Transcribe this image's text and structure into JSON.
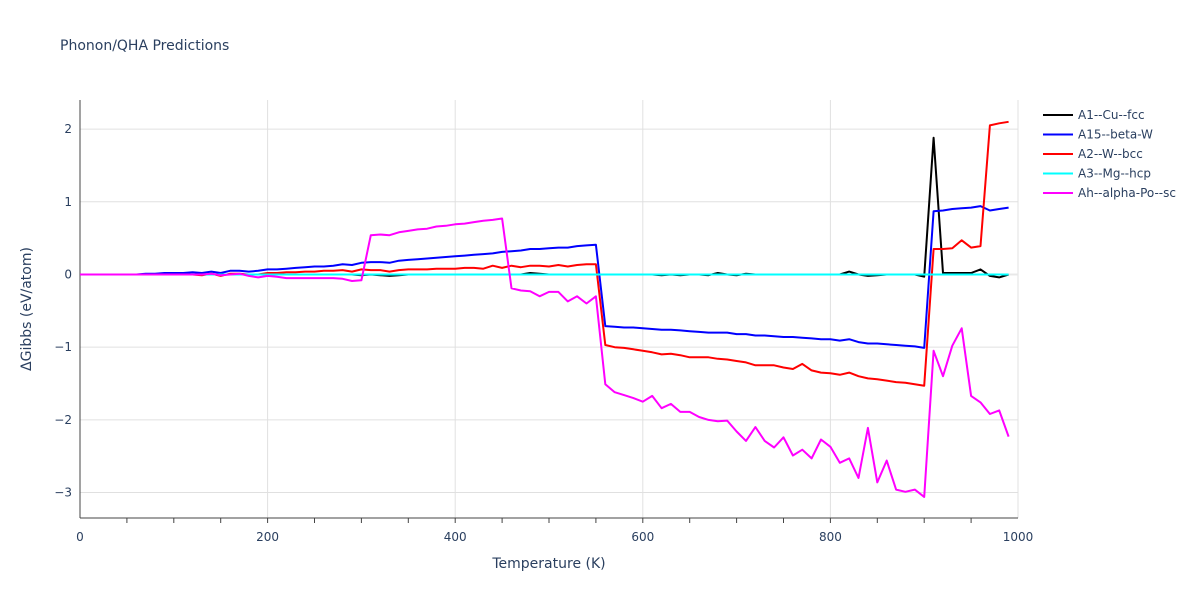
{
  "chart_data": {
    "type": "line",
    "title": "Phonon/QHA Predictions",
    "xlabel": "Temperature (K)",
    "ylabel": "ΔGibbs (eV/atom)",
    "xlim": [
      0,
      1000
    ],
    "ylim": [
      -3.35,
      2.4
    ],
    "xticks": [
      0,
      200,
      400,
      600,
      800,
      1000
    ],
    "yticks": [
      -3,
      -2,
      -1,
      0,
      1,
      2
    ],
    "grid": true,
    "legend_position": "right",
    "x": [
      0,
      10,
      20,
      30,
      40,
      50,
      60,
      70,
      80,
      90,
      100,
      110,
      120,
      130,
      140,
      150,
      160,
      170,
      180,
      190,
      200,
      210,
      220,
      230,
      240,
      250,
      260,
      270,
      280,
      290,
      300,
      310,
      320,
      330,
      340,
      350,
      360,
      370,
      380,
      390,
      400,
      410,
      420,
      430,
      440,
      450,
      460,
      470,
      480,
      490,
      500,
      510,
      520,
      530,
      540,
      550,
      560,
      570,
      580,
      590,
      600,
      610,
      620,
      630,
      640,
      650,
      660,
      670,
      680,
      690,
      700,
      710,
      720,
      730,
      740,
      750,
      760,
      770,
      780,
      790,
      800,
      810,
      820,
      830,
      840,
      850,
      860,
      870,
      880,
      890,
      900,
      910,
      920,
      930,
      940,
      950,
      960,
      970,
      980,
      990
    ],
    "series": [
      {
        "name": "A1--Cu--fcc",
        "color": "#000000",
        "values": [
          0,
          0,
          0,
          0,
          0,
          0,
          0,
          0,
          0,
          0,
          0,
          0,
          0,
          0,
          0,
          0,
          0,
          0,
          0,
          0,
          0,
          0,
          0,
          0,
          0,
          0,
          0,
          0,
          0,
          0,
          -0.01,
          0,
          -0.01,
          -0.02,
          -0.01,
          0,
          0,
          0,
          0,
          0,
          0,
          0,
          0,
          0,
          0,
          0,
          0,
          0,
          0.02,
          0.01,
          0,
          0,
          0,
          0,
          0,
          0,
          0,
          0,
          0,
          0,
          0,
          0,
          -0.01,
          0,
          -0.01,
          0,
          0,
          -0.01,
          0.02,
          0,
          -0.01,
          0.01,
          0,
          0,
          0,
          0,
          0,
          0,
          0,
          0,
          0,
          0,
          0.04,
          0,
          -0.02,
          -0.01,
          0,
          0,
          0,
          0,
          -0.03,
          1.88,
          0.02,
          0.02,
          0.02,
          0.02,
          0.07,
          -0.02,
          -0.04,
          0
        ]
      },
      {
        "name": "A15--beta-W",
        "color": "#0000ff",
        "values": [
          0,
          0,
          0,
          0,
          0,
          0,
          0,
          0.01,
          0.01,
          0.02,
          0.02,
          0.02,
          0.03,
          0.02,
          0.04,
          0.02,
          0.05,
          0.05,
          0.04,
          0.05,
          0.07,
          0.07,
          0.08,
          0.09,
          0.1,
          0.11,
          0.11,
          0.12,
          0.14,
          0.13,
          0.16,
          0.17,
          0.17,
          0.16,
          0.19,
          0.2,
          0.21,
          0.22,
          0.23,
          0.24,
          0.25,
          0.26,
          0.27,
          0.28,
          0.29,
          0.31,
          0.32,
          0.33,
          0.35,
          0.35,
          0.36,
          0.37,
          0.37,
          0.39,
          0.4,
          0.41,
          -0.71,
          -0.72,
          -0.73,
          -0.73,
          -0.74,
          -0.75,
          -0.76,
          -0.76,
          -0.77,
          -0.78,
          -0.79,
          -0.8,
          -0.8,
          -0.8,
          -0.82,
          -0.82,
          -0.84,
          -0.84,
          -0.85,
          -0.86,
          -0.86,
          -0.87,
          -0.88,
          -0.89,
          -0.89,
          -0.91,
          -0.89,
          -0.93,
          -0.95,
          -0.95,
          -0.96,
          -0.97,
          -0.98,
          -0.99,
          -1.01,
          0.87,
          0.88,
          0.9,
          0.91,
          0.92,
          0.94,
          0.88,
          0.9,
          0.92
        ]
      },
      {
        "name": "A2--W--bcc",
        "color": "#ff0000",
        "values": [
          0,
          0,
          0,
          0,
          0,
          0,
          0,
          0,
          0,
          0,
          0,
          0,
          0,
          -0.01,
          0.01,
          -0.02,
          0.01,
          0.01,
          0,
          0,
          0.02,
          0.02,
          0.03,
          0.03,
          0.04,
          0.04,
          0.05,
          0.05,
          0.06,
          0.04,
          0.07,
          0.06,
          0.06,
          0.04,
          0.06,
          0.07,
          0.07,
          0.07,
          0.08,
          0.08,
          0.08,
          0.09,
          0.09,
          0.08,
          0.12,
          0.09,
          0.12,
          0.1,
          0.12,
          0.12,
          0.11,
          0.13,
          0.11,
          0.13,
          0.14,
          0.14,
          -0.97,
          -1.0,
          -1.01,
          -1.03,
          -1.05,
          -1.07,
          -1.1,
          -1.09,
          -1.11,
          -1.14,
          -1.14,
          -1.14,
          -1.16,
          -1.17,
          -1.19,
          -1.21,
          -1.25,
          -1.25,
          -1.25,
          -1.28,
          -1.3,
          -1.23,
          -1.32,
          -1.35,
          -1.36,
          -1.38,
          -1.35,
          -1.4,
          -1.43,
          -1.44,
          -1.46,
          -1.48,
          -1.49,
          -1.51,
          -1.53,
          0.35,
          0.35,
          0.36,
          0.47,
          0.37,
          0.39,
          2.05,
          2.08,
          2.1
        ]
      },
      {
        "name": "A3--Mg--hcp",
        "color": "#00ffff",
        "values": [
          0,
          0,
          0,
          0,
          0,
          0,
          0,
          0,
          0,
          0,
          0,
          0,
          0,
          0,
          0,
          0,
          0,
          0,
          0,
          0,
          0,
          0,
          0,
          0,
          0,
          0,
          0,
          0,
          0,
          0,
          0,
          0,
          0,
          0,
          0,
          0,
          0,
          0,
          0,
          0,
          0,
          0,
          0,
          0,
          0,
          0,
          0,
          0,
          0,
          0,
          0,
          0,
          0,
          0,
          0,
          0,
          0,
          0,
          0,
          0,
          0,
          0,
          0,
          0,
          0,
          0,
          0,
          0,
          0,
          0,
          0,
          0,
          0,
          0,
          0,
          0,
          0,
          0,
          0,
          0,
          0,
          0,
          0,
          0,
          0,
          0,
          0,
          0,
          0,
          0,
          0,
          0,
          0,
          0,
          0,
          0,
          0,
          0,
          0,
          0
        ]
      },
      {
        "name": "Ah--alpha-Po--sc",
        "color": "#ff00ff",
        "values": [
          0,
          0,
          0,
          0,
          0,
          0,
          0,
          0,
          0,
          0,
          0,
          0,
          0,
          0,
          0.01,
          -0.01,
          0,
          0.01,
          -0.02,
          -0.04,
          -0.02,
          -0.03,
          -0.05,
          -0.05,
          -0.05,
          -0.05,
          -0.05,
          -0.05,
          -0.06,
          -0.09,
          -0.08,
          0.54,
          0.55,
          0.54,
          0.58,
          0.6,
          0.62,
          0.63,
          0.66,
          0.67,
          0.69,
          0.7,
          0.72,
          0.74,
          0.75,
          0.77,
          -0.19,
          -0.22,
          -0.23,
          -0.3,
          -0.24,
          -0.24,
          -0.37,
          -0.3,
          -0.4,
          -0.3,
          -1.51,
          -1.62,
          -1.66,
          -1.7,
          -1.75,
          -1.67,
          -1.84,
          -1.78,
          -1.89,
          -1.89,
          -1.96,
          -2.0,
          -2.02,
          -2.01,
          -2.16,
          -2.29,
          -2.1,
          -2.29,
          -2.38,
          -2.24,
          -2.49,
          -2.41,
          -2.53,
          -2.27,
          -2.37,
          -2.59,
          -2.53,
          -2.8,
          -2.11,
          -2.86,
          -2.56,
          -2.96,
          -2.99,
          -2.96,
          -3.06,
          -1.05,
          -1.4,
          -0.98,
          -0.74,
          -1.67,
          -1.76,
          -1.92,
          -1.87,
          -2.23
        ]
      }
    ]
  }
}
